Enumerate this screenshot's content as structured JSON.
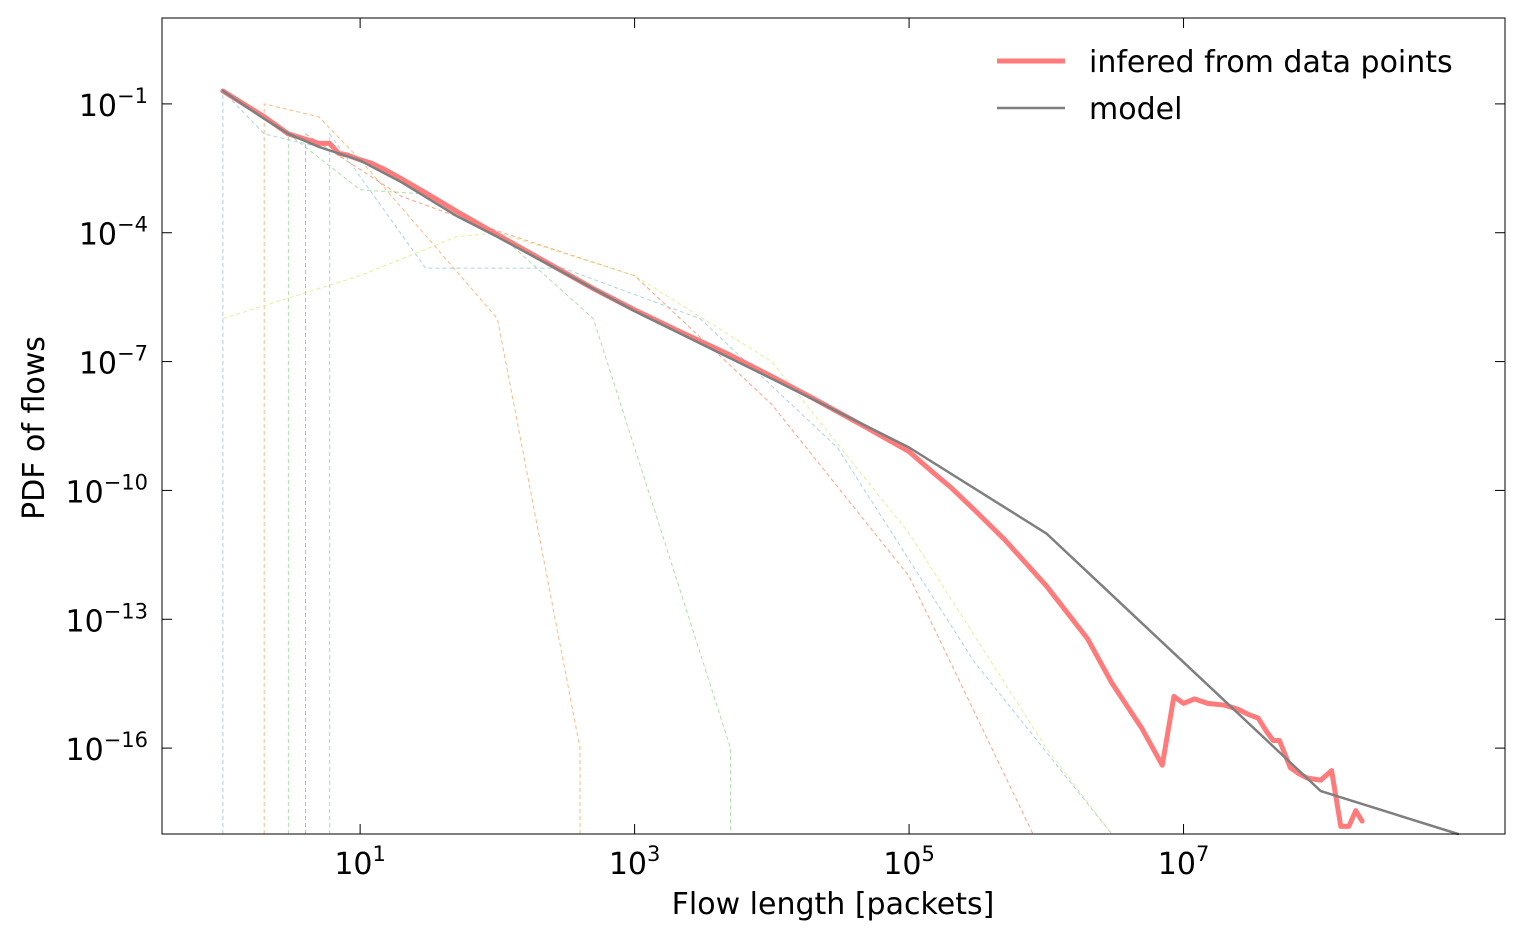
{
  "chart_data": {
    "type": "line",
    "title": "",
    "xlabel": "Flow length [packets]",
    "ylabel": "PDF of flows",
    "x_scale": "log",
    "y_scale": "log",
    "xlim": [
      0.36,
      2200000000.0
    ],
    "ylim": [
      1e-18,
      10
    ],
    "grid": false,
    "legend_position": "top-right",
    "x_ticks": [
      {
        "value": 10,
        "base": "10",
        "exp": "1"
      },
      {
        "value": 1000,
        "base": "10",
        "exp": "3"
      },
      {
        "value": 100000,
        "base": "10",
        "exp": "5"
      },
      {
        "value": 10000000,
        "base": "10",
        "exp": "7"
      }
    ],
    "y_ticks": [
      {
        "value": 0.1,
        "base": "10",
        "exp": "−1"
      },
      {
        "value": 0.0001,
        "base": "10",
        "exp": "−4"
      },
      {
        "value": 1e-07,
        "base": "10",
        "exp": "−7"
      },
      {
        "value": 1e-10,
        "base": "10",
        "exp": "−10"
      },
      {
        "value": 1e-13,
        "base": "10",
        "exp": "−13"
      },
      {
        "value": 1e-16,
        "base": "10",
        "exp": "−16"
      }
    ],
    "series": [
      {
        "name": "infered from data points",
        "color": "#ff7b7b",
        "style": "thick",
        "x": [
          1,
          2,
          3,
          4,
          5,
          6,
          7,
          8,
          10,
          12,
          15,
          20,
          30,
          50,
          100,
          200,
          500,
          1000,
          2000,
          5000,
          10000,
          20000,
          50000,
          100000,
          150000,
          200000,
          300000,
          500000,
          1000000,
          2000000,
          3000000,
          5000000,
          7000000,
          8500000,
          10000000,
          12000000,
          15000000,
          20000000,
          25000000,
          30000000,
          35000000,
          40000000,
          45000000,
          50000000,
          60000000,
          70000000,
          80000000,
          100000000,
          120000000,
          140000000,
          160000000,
          180000000,
          200000000
        ],
        "y": [
          0.2,
          0.05,
          0.02,
          0.015,
          0.012,
          0.012,
          0.007,
          0.0065,
          0.005,
          0.0042,
          0.003,
          0.0018,
          0.00085,
          0.00032,
          9e-05,
          2.6e-05,
          5e-06,
          1.6e-06,
          5.5e-07,
          1.4e-07,
          4.5e-08,
          1.4e-08,
          2.8e-09,
          8e-10,
          2.6e-10,
          1.2e-10,
          3.5e-11,
          7e-12,
          6e-13,
          3.5e-14,
          3.3e-15,
          2.8e-16,
          4e-17,
          1.6e-15,
          1.1e-15,
          1.4e-15,
          1.1e-15,
          1e-15,
          8e-16,
          6e-16,
          5e-16,
          2.5e-16,
          1.5e-16,
          1.5e-16,
          3.5e-17,
          2.5e-17,
          2e-17,
          1.8e-17,
          3e-17,
          1.5e-18,
          1.5e-18,
          3.5e-18,
          2e-18
        ]
      },
      {
        "name": "model",
        "color": "#7f7f7f",
        "style": "thin",
        "x": [
          1,
          2,
          3,
          5,
          10,
          20,
          50,
          100,
          1000,
          10000,
          100000,
          1000000,
          10000000,
          100000000,
          1000000000
        ],
        "y": [
          0.2,
          0.045,
          0.02,
          0.01,
          0.0048,
          0.0015,
          0.00025,
          8e-05,
          1.5e-06,
          4e-08,
          1e-09,
          1e-11,
          1e-14,
          1e-17,
          1e-18
        ]
      }
    ],
    "components": [
      {
        "color": "#9ecae1",
        "x": [
          1,
          1,
          2,
          5,
          10,
          20
        ],
        "y": [
          1e-18,
          0.2,
          0.02,
          0.01,
          0.0048,
          0.0015
        ]
      },
      {
        "color": "#fdae6b",
        "x": [
          2,
          2,
          5,
          10,
          100,
          400,
          400
        ],
        "y": [
          1e-18,
          0.1,
          0.05,
          0.005,
          1e-06,
          1e-16,
          1e-18
        ]
      },
      {
        "color": "#a1d99b",
        "x": [
          3,
          3,
          10,
          30,
          100,
          500,
          5000,
          5000
        ],
        "y": [
          1e-18,
          0.02,
          0.001,
          0.0008,
          0.0001,
          1e-06,
          1e-16,
          1e-18
        ]
      },
      {
        "color": "#fc9272",
        "x": [
          4,
          4,
          20,
          100,
          1000,
          10000,
          100000,
          800000
        ],
        "y": [
          1e-18,
          0.02,
          0.0007,
          0.00011,
          1e-05,
          1e-08,
          1e-12,
          1e-18
        ]
      },
      {
        "color": "#9ecae1",
        "x": [
          6,
          6,
          30,
          300,
          3000,
          30000,
          300000,
          3000000
        ],
        "y": [
          1e-18,
          0.02,
          1.5e-05,
          1.5e-05,
          1e-06,
          1e-09,
          1e-14,
          1e-18
        ]
      },
      {
        "color": "#d9ef8b",
        "x": [
          1,
          10,
          50,
          100,
          1000,
          10000,
          100000,
          1000000,
          3000000
        ],
        "y": [
          1e-06,
          1e-05,
          8e-05,
          0.0001,
          1e-05,
          1e-07,
          1e-11,
          1e-16,
          1e-18
        ]
      }
    ]
  }
}
